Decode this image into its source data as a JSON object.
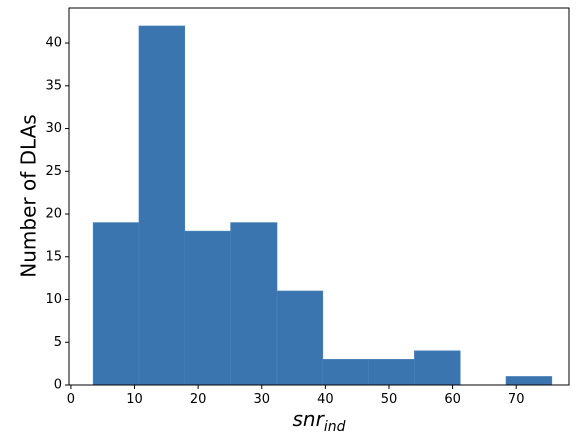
{
  "chart_data": {
    "type": "histogram",
    "bins": [
      3.5,
      10.7,
      17.9,
      25.1,
      32.4,
      39.6,
      46.8,
      54.0,
      61.2,
      68.4,
      75.6
    ],
    "values": [
      19,
      42,
      18,
      19,
      11,
      3,
      3,
      4,
      0,
      1
    ],
    "color": "#3b75af",
    "xlabel": {
      "main": "snr",
      "sub": "ind"
    },
    "ylabel": "Number of DLAs",
    "xlim": [
      -0.3,
      78.3
    ],
    "xticks": [
      0,
      10,
      20,
      30,
      40,
      50,
      60,
      70
    ],
    "ylim": [
      0,
      44.1
    ],
    "yticks": [
      0,
      5,
      10,
      15,
      20,
      25,
      30,
      35,
      40
    ],
    "grid": false
  }
}
